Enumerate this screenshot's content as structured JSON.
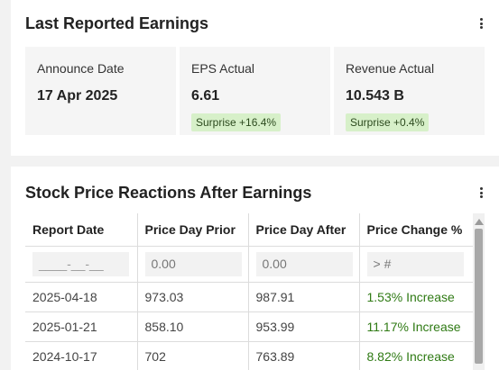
{
  "earnings_card": {
    "title": "Last Reported Earnings",
    "metrics": [
      {
        "label": "Announce Date",
        "value": "17 Apr 2025",
        "badge": ""
      },
      {
        "label": "EPS Actual",
        "value": "6.61",
        "badge": "Surprise +16.4%"
      },
      {
        "label": "Revenue Actual",
        "value": "10.543 B",
        "badge": "Surprise +0.4%"
      }
    ]
  },
  "reactions_card": {
    "title": "Stock Price Reactions After Earnings",
    "columns": [
      "Report Date",
      "Price Day Prior",
      "Price Day After",
      "Price Change %"
    ],
    "filters": [
      "____-__-__",
      "0.00",
      "0.00",
      "> #"
    ],
    "rows": [
      [
        "2025-04-18",
        "973.03",
        "987.91",
        "1.53% Increase"
      ],
      [
        "2025-01-21",
        "858.10",
        "953.99",
        "11.17% Increase"
      ],
      [
        "2024-10-17",
        "702",
        "763.89",
        "8.82% Increase"
      ]
    ]
  },
  "colors": {
    "accent_increase": "#2f7a14",
    "badge_bg": "#d7f0c9",
    "card_bg": "#ffffff",
    "page_bg": "#f2f2f2"
  },
  "icons": {
    "menu": "kebab-menu-icon",
    "scroll_up": "scroll-up-arrow-icon"
  }
}
